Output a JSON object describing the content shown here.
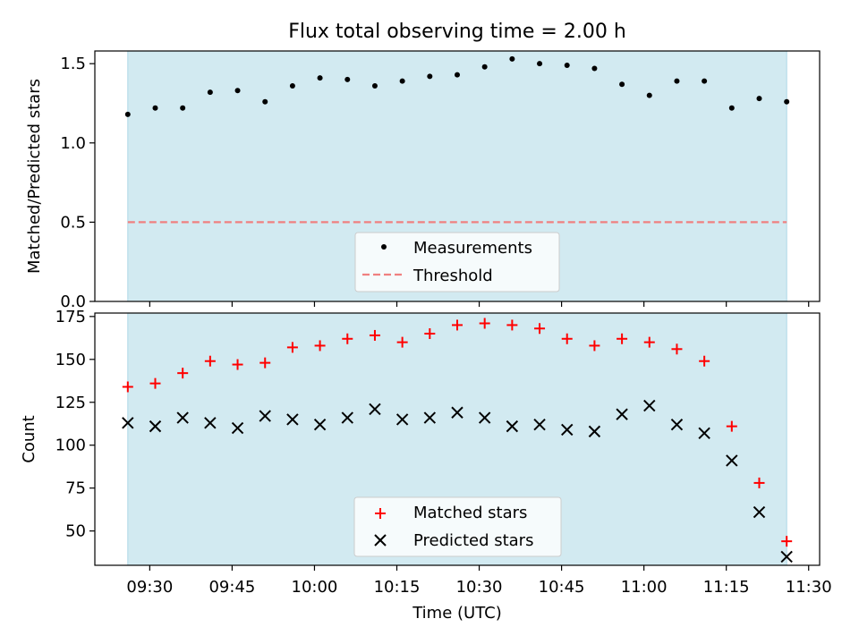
{
  "chart_data": [
    {
      "type": "scatter",
      "title": "Flux total observing time = 2.00 h",
      "ylabel": "Matched/Predicted stars",
      "ylim": [
        0,
        1.58
      ],
      "yticks": [
        0.0,
        0.5,
        1.0,
        1.5
      ],
      "ytick_labels": [
        "0.0",
        "0.5",
        "1.0",
        "1.5"
      ],
      "shaded_span": [
        "09:26",
        "11:26"
      ],
      "shade_color": "#add8e6",
      "x": [
        "09:26",
        "09:31",
        "09:36",
        "09:41",
        "09:46",
        "09:51",
        "09:56",
        "10:01",
        "10:06",
        "10:11",
        "10:16",
        "10:21",
        "10:26",
        "10:31",
        "10:36",
        "10:41",
        "10:46",
        "10:51",
        "10:56",
        "11:01",
        "11:06",
        "11:11",
        "11:16",
        "11:21",
        "11:26"
      ],
      "series": [
        {
          "name": "Measurements",
          "marker": "dot",
          "color": "#000000",
          "values": [
            1.18,
            1.22,
            1.22,
            1.32,
            1.33,
            1.26,
            1.36,
            1.41,
            1.4,
            1.36,
            1.39,
            1.42,
            1.43,
            1.48,
            1.53,
            1.5,
            1.49,
            1.47,
            1.37,
            1.3,
            1.39,
            1.39,
            1.22,
            1.28,
            1.26
          ]
        },
        {
          "name": "Threshold",
          "marker": "dashed-line",
          "color": "#f08080",
          "values": [
            0.5,
            0.5
          ]
        }
      ],
      "legend": {
        "position": "lower-center",
        "entries": [
          "Measurements",
          "Threshold"
        ]
      }
    },
    {
      "type": "scatter",
      "xlabel": "Time (UTC)",
      "ylabel": "Count",
      "ylim": [
        30,
        177
      ],
      "yticks": [
        50,
        75,
        100,
        125,
        150,
        175
      ],
      "ytick_labels": [
        "50",
        "75",
        "100",
        "125",
        "150",
        "175"
      ],
      "xlim": [
        "09:20",
        "11:32"
      ],
      "xticks": [
        "09:30",
        "09:45",
        "10:00",
        "10:15",
        "10:30",
        "10:45",
        "11:00",
        "11:15",
        "11:30"
      ],
      "xtick_labels": [
        "09:30",
        "09:45",
        "10:00",
        "10:15",
        "10:30",
        "10:45",
        "11:00",
        "11:15",
        "11:30"
      ],
      "shaded_span": [
        "09:26",
        "11:26"
      ],
      "shade_color": "#add8e6",
      "x": [
        "09:26",
        "09:31",
        "09:36",
        "09:41",
        "09:46",
        "09:51",
        "09:56",
        "10:01",
        "10:06",
        "10:11",
        "10:16",
        "10:21",
        "10:26",
        "10:31",
        "10:36",
        "10:41",
        "10:46",
        "10:51",
        "10:56",
        "11:01",
        "11:06",
        "11:11",
        "11:16",
        "11:21",
        "11:26"
      ],
      "series": [
        {
          "name": "Matched stars",
          "marker": "plus",
          "color": "#ff0000",
          "values": [
            134,
            136,
            142,
            149,
            147,
            148,
            157,
            158,
            162,
            164,
            160,
            165,
            170,
            171,
            170,
            168,
            162,
            158,
            162,
            160,
            156,
            149,
            111,
            78,
            44
          ]
        },
        {
          "name": "Predicted stars",
          "marker": "x",
          "color": "#000000",
          "values": [
            113,
            111,
            116,
            113,
            110,
            117,
            115,
            112,
            116,
            121,
            115,
            116,
            119,
            116,
            111,
            112,
            109,
            108,
            118,
            123,
            112,
            107,
            91,
            61,
            35
          ]
        }
      ],
      "legend": {
        "position": "lower-center",
        "entries": [
          "Matched stars",
          "Predicted stars"
        ]
      }
    }
  ]
}
